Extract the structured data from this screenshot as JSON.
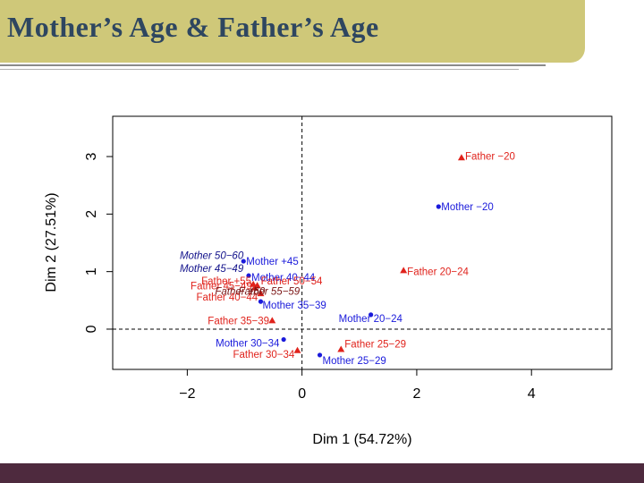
{
  "slide": {
    "title": "Mother’s Age & Father’s Age"
  },
  "colors": {
    "mother": "#1a1adb",
    "father": "#e0231c",
    "supplementary_mother": "#11118a",
    "supplementary_father": "#7a1414"
  },
  "chart_data": {
    "type": "scatter",
    "title": "",
    "xlabel": "Dim 1 (54.72%)",
    "ylabel": "Dim 2 (27.51%)",
    "xlim": [
      -3.3,
      5.4
    ],
    "ylim": [
      -0.7,
      3.7
    ],
    "xticks": [
      -2,
      0,
      2,
      4
    ],
    "yticks": [
      0,
      1,
      2,
      3
    ],
    "xtick_labels": [
      "−2",
      "0",
      "2",
      "4"
    ],
    "ytick_labels": [
      "0",
      "1",
      "2",
      "3"
    ],
    "reference_lines": {
      "x": 0,
      "y": 0,
      "style": "dashed"
    },
    "grid": false,
    "legend": "none",
    "series": [
      {
        "name": "Mother",
        "marker": "circle",
        "points": [
          {
            "label": "Mother −20",
            "x": 2.38,
            "y": 2.13
          },
          {
            "label": "Mother +45",
            "x": -1.02,
            "y": 1.18
          },
          {
            "label": "Mother 40−44",
            "x": -0.93,
            "y": 0.93
          },
          {
            "label": "Mother 35−39",
            "x": -0.72,
            "y": 0.48
          },
          {
            "label": "Mother 20−24",
            "x": 1.2,
            "y": 0.25
          },
          {
            "label": "Mother 30−34",
            "x": -0.32,
            "y": -0.18
          },
          {
            "label": "Mother 25−29",
            "x": 0.31,
            "y": -0.45
          }
        ]
      },
      {
        "name": "Father",
        "marker": "triangle",
        "points": [
          {
            "label": "Father −20",
            "x": 2.78,
            "y": 2.98
          },
          {
            "label": "Father 20−24",
            "x": 1.77,
            "y": 1.02
          },
          {
            "label": "Father +55",
            "x": -0.85,
            "y": 0.78
          },
          {
            "label": "Father 50−54",
            "x": -0.78,
            "y": 0.76
          },
          {
            "label": "Father 45−49",
            "x": -0.82,
            "y": 0.72
          },
          {
            "label": "Father 40−44",
            "x": -0.72,
            "y": 0.62
          },
          {
            "label": "Father 35−39",
            "x": -0.52,
            "y": 0.15
          },
          {
            "label": "Father 25−29",
            "x": 0.68,
            "y": -0.35
          },
          {
            "label": "Father 30−34",
            "x": -0.08,
            "y": -0.37
          }
        ]
      },
      {
        "name": "Mother supplementary",
        "marker": "none",
        "points": [
          {
            "label": "Mother 50−60",
            "x": -1.02,
            "y": 1.28
          },
          {
            "label": "Mother 45−49",
            "x": -1.02,
            "y": 1.06
          }
        ]
      },
      {
        "name": "Father supplementary",
        "marker": "none",
        "points": [
          {
            "label": "Father +60",
            "x": -0.8,
            "y": 0.66
          },
          {
            "label": "Father 55−59",
            "x": -0.2,
            "y": 0.66
          }
        ]
      }
    ]
  }
}
